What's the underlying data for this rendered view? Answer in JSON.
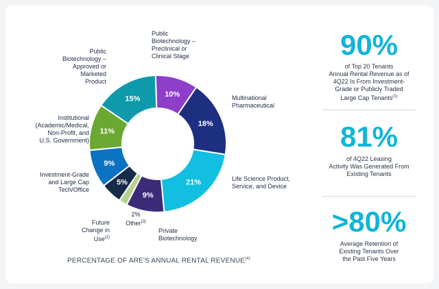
{
  "chart_data": {
    "type": "pie",
    "variant": "donut",
    "title": "PERCENTAGE OF ARE'S ANNUAL RENTAL REVENUE",
    "title_footnote": "(4)",
    "slices": [
      {
        "key": "mp",
        "label": "Multinational Pharmaceutical",
        "value": 18,
        "display": "18%",
        "color": "#1c2f80"
      },
      {
        "key": "ls",
        "label": "Life Science Product, Service, and Device",
        "value": 21,
        "display": "21%",
        "color": "#12bfe0"
      },
      {
        "key": "pb",
        "label": "Private Biotechnology",
        "value": 9,
        "display": "9%",
        "color": "#3c2b78"
      },
      {
        "key": "ot",
        "label": "Other",
        "value": 2,
        "display": "2%",
        "color": "#b5d38e"
      },
      {
        "key": "fc",
        "label": "Future Change in Use",
        "value": 5,
        "display": "5%",
        "color": "#172a47"
      },
      {
        "key": "ig",
        "label": "Investment-Grade and Large Cap Tech/Office",
        "value": 9,
        "display": "9%",
        "color": "#0a73c2"
      },
      {
        "key": "in",
        "label": "Institutional (Academic/Medical, Non-Profit, and U.S. Government)",
        "value": 11,
        "display": "11%",
        "color": "#6aa831"
      },
      {
        "key": "pa",
        "label": "Public Biotechnology – Approved or Marketed Product",
        "value": 15,
        "display": "15%",
        "color": "#0e9aab"
      },
      {
        "key": "pp",
        "label": "Public Biotechnology – Preclinical or Clinical Stage",
        "value": 10,
        "display": "10%",
        "color": "#8d3fc9"
      }
    ]
  },
  "labels": {
    "pp": [
      "Public",
      "Biotechnology –",
      "Preclinical or",
      "Clinical Stage"
    ],
    "mp": [
      "Multinational",
      "Pharmaceutical"
    ],
    "ls": [
      "Life Science Product,",
      "Service, and Device"
    ],
    "pb": [
      "Private",
      "Biotechnology"
    ],
    "ot_value": "2%",
    "ot": "Other",
    "ot_fn": "(3)",
    "fc": [
      "Future",
      "Change in",
      "Use"
    ],
    "fc_fn": "(2)",
    "ig": [
      "Investment-Grade",
      "and Large Cap",
      "Tech/Office"
    ],
    "in": [
      "Institutional",
      "(Academic/Medical,",
      "Non-Profit, and",
      "U.S. Government)"
    ],
    "pa": [
      "Public",
      "Biotechnology –",
      "Approved or",
      "Marketed",
      "Product"
    ]
  },
  "stats": [
    {
      "value": "90%",
      "lines": [
        "of Top 20 Tenants",
        "Annual Rental Revenue as of",
        "4Q22 Is From Investment-",
        "Grade or Publicly Traded",
        "Large Cap Tenants"
      ],
      "footnote": "(1)"
    },
    {
      "value": "81%",
      "lines": [
        "of 4Q22 Leasing",
        "Activity Was Generated From",
        "Existing Tenants"
      ],
      "footnote": ""
    },
    {
      "value": ">80%",
      "lines": [
        "Average Retention of",
        "Existing Tenants Over",
        "the Past Five Years"
      ],
      "footnote": ""
    }
  ]
}
